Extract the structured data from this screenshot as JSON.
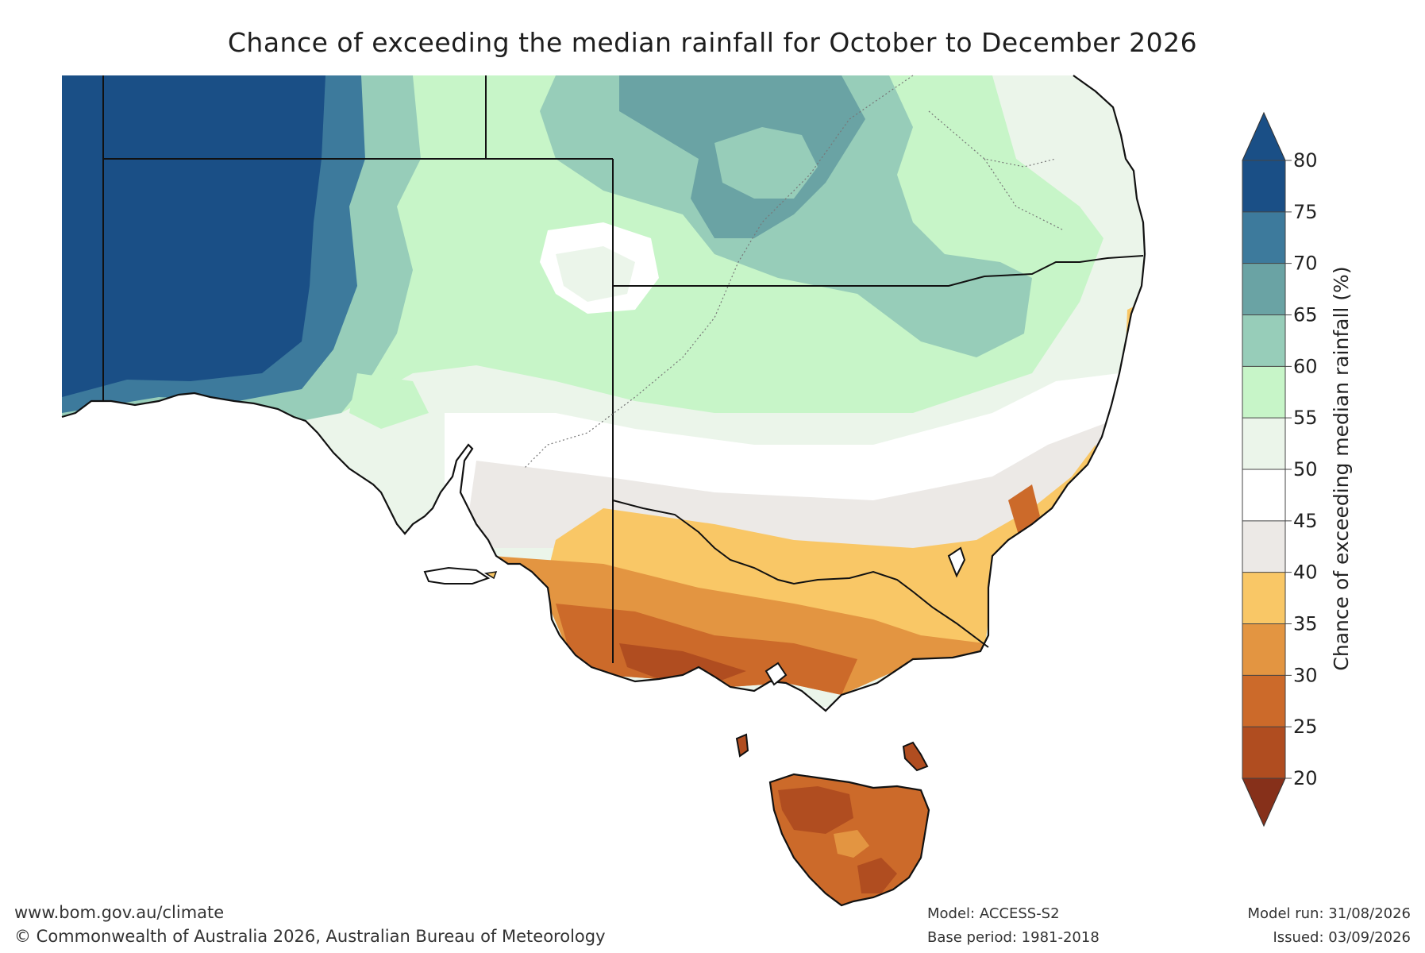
{
  "title": "Chance of exceeding the median rainfall for October to December 2026",
  "colorbar": {
    "label": "Chance of exceeding median rainfall (%)",
    "ticks": [
      "80",
      "75",
      "70",
      "65",
      "60",
      "55",
      "50",
      "45",
      "40",
      "35",
      "30",
      "25",
      "20"
    ],
    "bins": [
      {
        "range": "75-80",
        "color": "#1a4f86"
      },
      {
        "range": "70-75",
        "color": "#3d7a9c"
      },
      {
        "range": "65-70",
        "color": "#6aa3a4"
      },
      {
        "range": "60-65",
        "color": "#97cdb9"
      },
      {
        "range": "55-60",
        "color": "#c7f5c8"
      },
      {
        "range": "50-55",
        "color": "#ebf5ea"
      },
      {
        "range": "45-50",
        "color": "#ffffff"
      },
      {
        "range": "40-45",
        "color": "#ece9e6"
      },
      {
        "range": "35-40",
        "color": "#f9c766"
      },
      {
        "range": "30-35",
        "color": "#e39541"
      },
      {
        "range": "25-30",
        "color": "#cc6a2a"
      },
      {
        "range": "20-25",
        "color": "#b04d20"
      }
    ],
    "over_color": "#1a4f86",
    "under_color": "#86301a"
  },
  "footer": {
    "url": "www.bom.gov.au/climate",
    "copyright": "© Commonwealth of Australia 2026, Australian Bureau of Meteorology",
    "model": "Model: ACCESS-S2",
    "base_period": "Base period: 1981-2018",
    "model_run": "Model run: 31/08/2026",
    "issued": "Issued: 03/09/2026"
  },
  "map_regions": {
    "far_west": "#1a4f86",
    "north_west_band": "#3d7a9c",
    "north_east": "#6aa3a4",
    "central_green": "#c7f5c8",
    "central_light": "#ebf5ea",
    "center_white": "#ffffff",
    "south_grey": "#ece9e6",
    "victoria_yellow": "#f9c766",
    "victoria_orange": "#e39541",
    "victoria_south": "#cc6a2a",
    "tasmania": "#b04d20"
  }
}
